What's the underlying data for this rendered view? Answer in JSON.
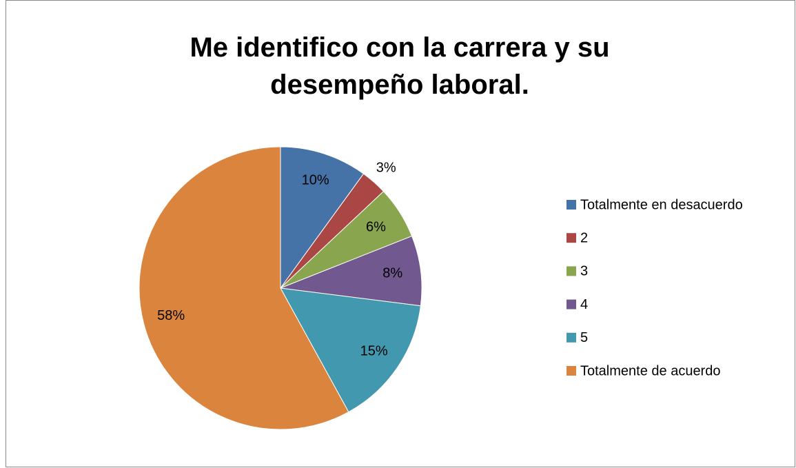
{
  "chart_data": {
    "type": "pie",
    "title": "Me identifico con la carrera y su desempeño laboral.",
    "categories": [
      "Totalmente en desacuerdo",
      "2",
      "3",
      "4",
      "5",
      "Totalmente de acuerdo"
    ],
    "values": [
      10,
      3,
      6,
      8,
      15,
      58
    ],
    "value_labels": [
      "10%",
      "3%",
      "6%",
      "8%",
      "15%",
      "58%"
    ],
    "colors": [
      "#4572a7",
      "#aa4643",
      "#89a54e",
      "#71588f",
      "#4198af",
      "#db843d"
    ],
    "legend": "right"
  }
}
